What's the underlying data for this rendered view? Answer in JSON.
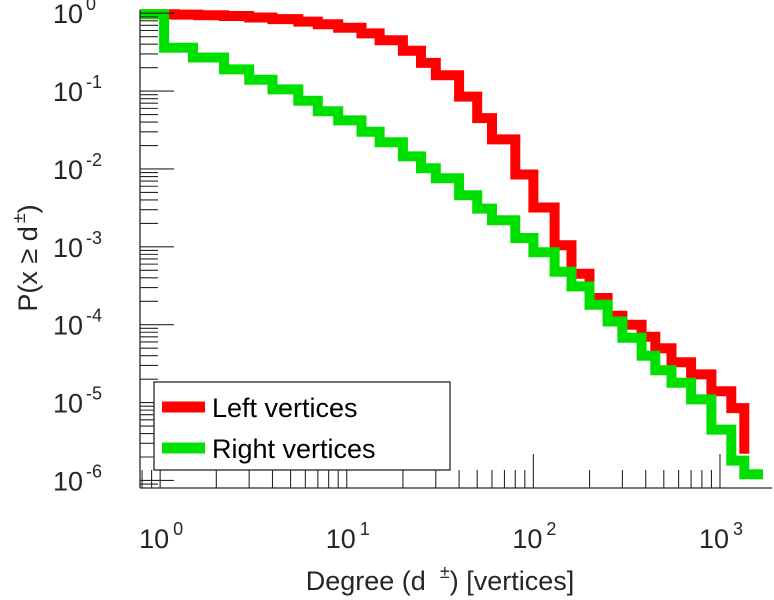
{
  "chart_data": {
    "type": "line",
    "title": "",
    "xlabel": {
      "main": "Degree (d",
      "sup": "±",
      "tail": ") [vertices]"
    },
    "ylabel": {
      "main": "P(x ≥ d",
      "sup": "±",
      "tail": ")"
    },
    "xscale": "log",
    "yscale": "log",
    "xlim": [
      0.78,
      1900
    ],
    "ylim": [
      8e-07,
      1.1
    ],
    "x_ticks": [
      {
        "base": "10",
        "exp": "0",
        "value": 1
      },
      {
        "base": "10",
        "exp": "1",
        "value": 10
      },
      {
        "base": "10",
        "exp": "2",
        "value": 100
      },
      {
        "base": "10",
        "exp": "3",
        "value": 1000
      }
    ],
    "y_ticks": [
      {
        "base": "10",
        "exp": "0",
        "value": 1
      },
      {
        "base": "10",
        "exp": "-1",
        "value": 0.1
      },
      {
        "base": "10",
        "exp": "-2",
        "value": 0.01
      },
      {
        "base": "10",
        "exp": "-3",
        "value": 0.001
      },
      {
        "base": "10",
        "exp": "-4",
        "value": 0.0001
      },
      {
        "base": "10",
        "exp": "-5",
        "value": 1e-05
      },
      {
        "base": "10",
        "exp": "-6",
        "value": 1e-06
      }
    ],
    "grid": false,
    "legend_position": "bottom-left",
    "series": [
      {
        "name": "Left vertices",
        "color": "#ff0000",
        "x": [
          0.78,
          1.2,
          1.6,
          2.2,
          3,
          4,
          5.5,
          7,
          9,
          12,
          15,
          20,
          25,
          30,
          40,
          50,
          60,
          80,
          100,
          130,
          160,
          200,
          250,
          300,
          380,
          450,
          550,
          700,
          900,
          1150,
          1350
        ],
        "y": [
          0.97,
          0.96,
          0.94,
          0.92,
          0.88,
          0.84,
          0.78,
          0.72,
          0.65,
          0.55,
          0.45,
          0.33,
          0.23,
          0.16,
          0.085,
          0.045,
          0.024,
          0.0085,
          0.0032,
          0.00105,
          0.00045,
          0.00022,
          0.00013,
          0.0001,
          7e-05,
          5e-05,
          3.3e-05,
          2.3e-05,
          1.4e-05,
          8.5e-06,
          2.2e-06
        ]
      },
      {
        "name": "Right vertices",
        "color": "#00e000",
        "x": [
          0.78,
          1.05,
          1.5,
          2.2,
          3,
          4,
          5.5,
          7,
          9,
          12,
          15,
          20,
          25,
          30,
          40,
          50,
          60,
          80,
          100,
          130,
          160,
          200,
          250,
          300,
          380,
          450,
          550,
          700,
          900,
          1150,
          1350,
          1700
        ],
        "y": [
          0.97,
          0.36,
          0.27,
          0.19,
          0.14,
          0.105,
          0.075,
          0.055,
          0.042,
          0.03,
          0.022,
          0.0145,
          0.0102,
          0.0076,
          0.0046,
          0.0031,
          0.0022,
          0.0013,
          0.00085,
          0.00048,
          0.00031,
          0.00018,
          0.00011,
          6.8e-05,
          4e-05,
          2.6e-05,
          1.8e-05,
          1.1e-05,
          4.5e-06,
          1.8e-06,
          1.2e-06,
          1.2e-06
        ]
      }
    ]
  }
}
